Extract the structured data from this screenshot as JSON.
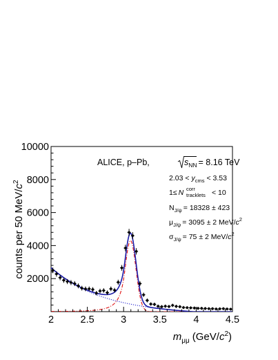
{
  "chart_data": {
    "type": "scatter",
    "xlabel": "m",
    "xlabel_sub": "μμ",
    "xlabel_unit_pre": "(GeV/",
    "xlabel_unit_c": "c",
    "xlabel_unit_exp": "2",
    "xlabel_unit_post": ")",
    "ylabel_pre": "counts per 50 MeV/",
    "ylabel_c": "c",
    "ylabel_exp": "2",
    "xlim": [
      2.0,
      4.5
    ],
    "ylim": [
      0,
      10000
    ],
    "xticks": [
      2,
      2.5,
      3,
      3.5,
      4,
      4.5
    ],
    "xtick_labels": [
      "2",
      "2.5",
      "3",
      "3.5",
      "4",
      "4.5"
    ],
    "yticks": [
      2000,
      4000,
      6000,
      8000,
      10000
    ],
    "ytick_labels": [
      "2000",
      "4000",
      "6000",
      "8000",
      "10000"
    ],
    "grid": false,
    "annotations": {
      "experiment": "ALICE, p–Pb,",
      "sqrt_s_value": "= 8.16 TeV",
      "sqrt_s_symbol": "s",
      "sqrt_s_sub": "NN",
      "rapidity_pre": "2.03 <",
      "rapidity_var": "y",
      "rapidity_sub": "cms",
      "rapidity_post": "< 3.53",
      "tracklets_pre": "1≤",
      "tracklets_var": "N",
      "tracklets_sup": "corr",
      "tracklets_sub": "tracklets",
      "tracklets_post": "< 10",
      "yield_var": "N",
      "yield_sub": "J/ψ",
      "yield_value": "= 18328 ± 423",
      "mean_var": "μ",
      "mean_sub": "J/ψ",
      "mean_value": "= 3095 ± 2 MeV/",
      "mean_c": "c",
      "mean_exp": "2",
      "sigma_var": "σ",
      "sigma_sub": "J/ψ",
      "sigma_value": "= 75 ± 2 MeV/",
      "sigma_c": "c",
      "sigma_exp": "2"
    },
    "colors": {
      "data": "#000000",
      "total_fit": "#1a1aa8",
      "signal": "#e01010",
      "background": "#2a2ad0",
      "axis": "#000000"
    },
    "series": [
      {
        "kind": "data_points",
        "x": [
          2.025,
          2.075,
          2.125,
          2.175,
          2.225,
          2.275,
          2.325,
          2.375,
          2.425,
          2.475,
          2.525,
          2.575,
          2.625,
          2.675,
          2.725,
          2.775,
          2.825,
          2.875,
          2.925,
          2.975,
          3.025,
          3.075,
          3.125,
          3.175,
          3.225,
          3.275,
          3.325,
          3.375,
          3.425,
          3.475,
          3.525,
          3.575,
          3.625,
          3.675,
          3.725,
          3.775,
          3.825,
          3.875,
          3.925,
          3.975,
          4.025,
          4.075,
          4.125,
          4.175,
          4.225,
          4.275,
          4.325,
          4.375,
          4.425,
          4.475
        ],
        "y": [
          2500,
          2280,
          2060,
          1900,
          1820,
          1760,
          1700,
          1560,
          1420,
          1380,
          1380,
          1340,
          1120,
          1250,
          1280,
          1150,
          1380,
          1300,
          1780,
          2650,
          3850,
          4800,
          4600,
          3650,
          1700,
          1020,
          680,
          460,
          440,
          330,
          300,
          330,
          310,
          380,
          320,
          300,
          250,
          240,
          230,
          220,
          200,
          200,
          190,
          180,
          180,
          160,
          170,
          180,
          160,
          150
        ]
      }
    ]
  }
}
